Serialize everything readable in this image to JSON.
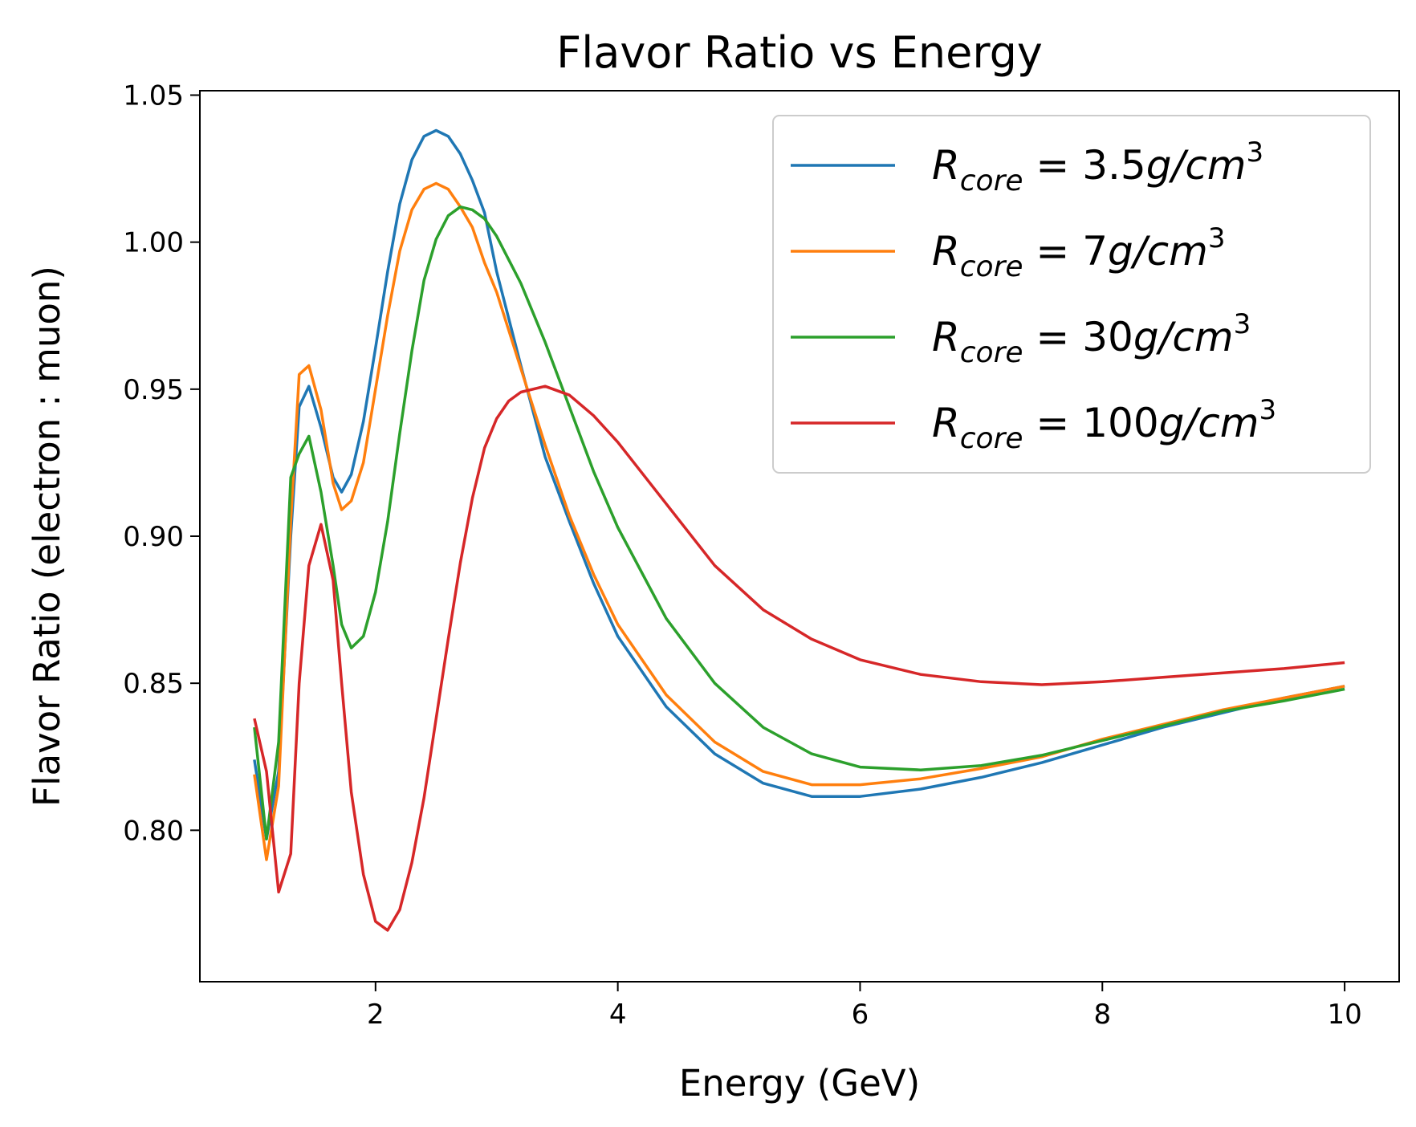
{
  "chart_data": {
    "type": "line",
    "title": "Flavor Ratio vs Energy",
    "xlabel": "Energy (GeV)",
    "ylabel": "Flavor Ratio (electron : muon)",
    "xlim": [
      0.55,
      10.45
    ],
    "ylim": [
      0.7485,
      1.0515
    ],
    "xticks": [
      2,
      4,
      6,
      8,
      10
    ],
    "xtick_labels": [
      "2",
      "4",
      "6",
      "8",
      "10"
    ],
    "yticks": [
      0.8,
      0.85,
      0.9,
      0.95,
      1.0,
      1.05
    ],
    "ytick_labels": [
      "0.80",
      "0.85",
      "0.90",
      "0.95",
      "1.00",
      "1.05"
    ],
    "grid": false,
    "legend_position": "top-right",
    "series": [
      {
        "name": "R_core = 3.5g/cm^3",
        "label_main": "R",
        "label_sub": "core",
        "label_eq": " = 3.5",
        "label_unit": "g/cm",
        "label_exp": "3",
        "color": "#1f77b4",
        "points": [
          [
            1.0,
            0.824
          ],
          [
            1.1,
            0.797
          ],
          [
            1.2,
            0.82
          ],
          [
            1.3,
            0.9
          ],
          [
            1.37,
            0.944
          ],
          [
            1.45,
            0.951
          ],
          [
            1.55,
            0.937
          ],
          [
            1.65,
            0.92
          ],
          [
            1.72,
            0.915
          ],
          [
            1.8,
            0.921
          ],
          [
            1.9,
            0.939
          ],
          [
            2.0,
            0.964
          ],
          [
            2.1,
            0.99
          ],
          [
            2.2,
            1.013
          ],
          [
            2.3,
            1.028
          ],
          [
            2.4,
            1.036
          ],
          [
            2.5,
            1.038
          ],
          [
            2.6,
            1.036
          ],
          [
            2.7,
            1.03
          ],
          [
            2.8,
            1.021
          ],
          [
            2.9,
            1.01
          ],
          [
            3.0,
            0.99
          ],
          [
            3.2,
            0.958
          ],
          [
            3.4,
            0.927
          ],
          [
            3.6,
            0.905
          ],
          [
            3.8,
            0.884
          ],
          [
            4.0,
            0.866
          ],
          [
            4.4,
            0.842
          ],
          [
            4.8,
            0.826
          ],
          [
            5.2,
            0.816
          ],
          [
            5.6,
            0.8115
          ],
          [
            6.0,
            0.8115
          ],
          [
            6.5,
            0.814
          ],
          [
            7.0,
            0.818
          ],
          [
            7.5,
            0.823
          ],
          [
            8.0,
            0.829
          ],
          [
            8.5,
            0.835
          ],
          [
            9.0,
            0.84
          ],
          [
            9.5,
            0.845
          ],
          [
            10.0,
            0.849
          ]
        ]
      },
      {
        "name": "R_core = 7g/cm^3",
        "label_main": "R",
        "label_sub": "core",
        "label_eq": " = 7",
        "label_unit": "g/cm",
        "label_exp": "3",
        "color": "#ff7f0e",
        "points": [
          [
            1.0,
            0.819
          ],
          [
            1.1,
            0.79
          ],
          [
            1.2,
            0.815
          ],
          [
            1.3,
            0.905
          ],
          [
            1.37,
            0.955
          ],
          [
            1.45,
            0.958
          ],
          [
            1.55,
            0.943
          ],
          [
            1.65,
            0.918
          ],
          [
            1.72,
            0.909
          ],
          [
            1.8,
            0.912
          ],
          [
            1.9,
            0.925
          ],
          [
            2.0,
            0.95
          ],
          [
            2.1,
            0.975
          ],
          [
            2.2,
            0.997
          ],
          [
            2.3,
            1.011
          ],
          [
            2.4,
            1.018
          ],
          [
            2.5,
            1.02
          ],
          [
            2.6,
            1.018
          ],
          [
            2.7,
            1.012
          ],
          [
            2.8,
            1.005
          ],
          [
            2.9,
            0.993
          ],
          [
            3.0,
            0.983
          ],
          [
            3.2,
            0.957
          ],
          [
            3.4,
            0.931
          ],
          [
            3.6,
            0.907
          ],
          [
            3.8,
            0.887
          ],
          [
            4.0,
            0.87
          ],
          [
            4.4,
            0.846
          ],
          [
            4.8,
            0.83
          ],
          [
            5.2,
            0.82
          ],
          [
            5.6,
            0.8155
          ],
          [
            6.0,
            0.8155
          ],
          [
            6.5,
            0.8175
          ],
          [
            7.0,
            0.821
          ],
          [
            7.5,
            0.825
          ],
          [
            8.0,
            0.831
          ],
          [
            8.5,
            0.836
          ],
          [
            9.0,
            0.841
          ],
          [
            9.5,
            0.845
          ],
          [
            10.0,
            0.849
          ]
        ]
      },
      {
        "name": "R_core = 30g/cm^3",
        "label_main": "R",
        "label_sub": "core",
        "label_eq": " = 30",
        "label_unit": "g/cm",
        "label_exp": "3",
        "color": "#2ca02c",
        "points": [
          [
            1.0,
            0.835
          ],
          [
            1.1,
            0.797
          ],
          [
            1.2,
            0.83
          ],
          [
            1.3,
            0.92
          ],
          [
            1.37,
            0.928
          ],
          [
            1.45,
            0.934
          ],
          [
            1.55,
            0.915
          ],
          [
            1.65,
            0.89
          ],
          [
            1.72,
            0.87
          ],
          [
            1.8,
            0.862
          ],
          [
            1.9,
            0.866
          ],
          [
            2.0,
            0.881
          ],
          [
            2.1,
            0.905
          ],
          [
            2.2,
            0.935
          ],
          [
            2.3,
            0.963
          ],
          [
            2.4,
            0.987
          ],
          [
            2.5,
            1.001
          ],
          [
            2.6,
            1.009
          ],
          [
            2.7,
            1.012
          ],
          [
            2.8,
            1.011
          ],
          [
            2.9,
            1.008
          ],
          [
            3.0,
            1.002
          ],
          [
            3.2,
            0.986
          ],
          [
            3.4,
            0.966
          ],
          [
            3.6,
            0.944
          ],
          [
            3.8,
            0.922
          ],
          [
            4.0,
            0.903
          ],
          [
            4.4,
            0.872
          ],
          [
            4.8,
            0.85
          ],
          [
            5.2,
            0.835
          ],
          [
            5.6,
            0.826
          ],
          [
            6.0,
            0.8215
          ],
          [
            6.5,
            0.8205
          ],
          [
            7.0,
            0.822
          ],
          [
            7.5,
            0.8255
          ],
          [
            8.0,
            0.8305
          ],
          [
            8.5,
            0.8355
          ],
          [
            9.0,
            0.8405
          ],
          [
            9.5,
            0.844
          ],
          [
            10.0,
            0.848
          ]
        ]
      },
      {
        "name": "R_core = 100g/cm^3",
        "label_main": "R",
        "label_sub": "core",
        "label_eq": " = 100",
        "label_unit": "g/cm",
        "label_exp": "3",
        "color": "#d62728",
        "points": [
          [
            1.0,
            0.838
          ],
          [
            1.1,
            0.82
          ],
          [
            1.2,
            0.779
          ],
          [
            1.3,
            0.792
          ],
          [
            1.37,
            0.85
          ],
          [
            1.45,
            0.89
          ],
          [
            1.55,
            0.904
          ],
          [
            1.65,
            0.885
          ],
          [
            1.72,
            0.85
          ],
          [
            1.8,
            0.813
          ],
          [
            1.9,
            0.785
          ],
          [
            2.0,
            0.769
          ],
          [
            2.1,
            0.766
          ],
          [
            2.2,
            0.773
          ],
          [
            2.3,
            0.789
          ],
          [
            2.4,
            0.811
          ],
          [
            2.5,
            0.838
          ],
          [
            2.6,
            0.865
          ],
          [
            2.7,
            0.891
          ],
          [
            2.8,
            0.913
          ],
          [
            2.9,
            0.93
          ],
          [
            3.0,
            0.94
          ],
          [
            3.1,
            0.946
          ],
          [
            3.2,
            0.949
          ],
          [
            3.4,
            0.951
          ],
          [
            3.6,
            0.948
          ],
          [
            3.8,
            0.941
          ],
          [
            4.0,
            0.932
          ],
          [
            4.4,
            0.911
          ],
          [
            4.8,
            0.89
          ],
          [
            5.2,
            0.875
          ],
          [
            5.6,
            0.865
          ],
          [
            6.0,
            0.858
          ],
          [
            6.5,
            0.853
          ],
          [
            7.0,
            0.8505
          ],
          [
            7.5,
            0.8495
          ],
          [
            8.0,
            0.8505
          ],
          [
            8.5,
            0.852
          ],
          [
            9.0,
            0.8535
          ],
          [
            9.5,
            0.855
          ],
          [
            10.0,
            0.857
          ]
        ]
      }
    ]
  }
}
